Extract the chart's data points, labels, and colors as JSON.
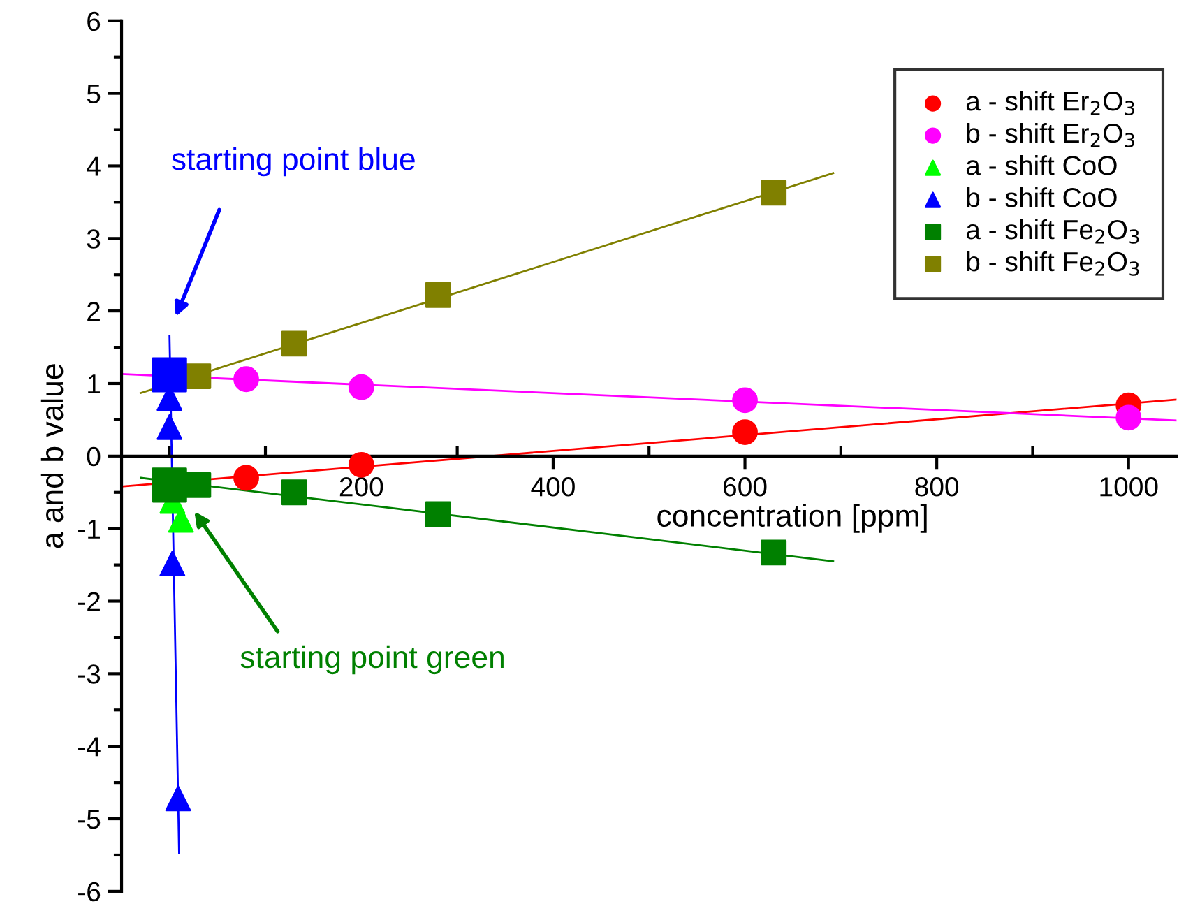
{
  "chart_data": {
    "type": "scatter",
    "xlabel": "concentration [ppm]",
    "ylabel": "a and b value",
    "xlim": [
      -50,
      1050
    ],
    "ylim": [
      -6,
      6
    ],
    "xticks": [
      {
        "value": 0,
        "label": null
      },
      {
        "value": 100,
        "label": null
      },
      200,
      {
        "value": 300,
        "label": null
      },
      400,
      {
        "value": 500,
        "label": null
      },
      600,
      {
        "value": 700,
        "label": null
      },
      800,
      {
        "value": 900,
        "label": null
      },
      1000
    ],
    "yticks": [
      -6,
      {
        "value": -5.5,
        "label": null
      },
      -5,
      {
        "value": -4.5,
        "label": null
      },
      -4,
      {
        "value": -3.5,
        "label": null
      },
      -3,
      {
        "value": -2.5,
        "label": null
      },
      -2,
      {
        "value": -1.5,
        "label": null
      },
      -1,
      {
        "value": -0.5,
        "label": null
      },
      0,
      {
        "value": 0.5,
        "label": null
      },
      1,
      {
        "value": 1.5,
        "label": null
      },
      2,
      {
        "value": 2.5,
        "label": null
      },
      3,
      {
        "value": 3.5,
        "label": null
      },
      4,
      {
        "value": 4.5,
        "label": null
      },
      5,
      {
        "value": 5.5,
        "label": null
      },
      6
    ],
    "grid": false,
    "legend": "top right",
    "series": [
      {
        "type": "line",
        "color": "#ff0000",
        "x": [
          -50,
          1050
        ],
        "values": [
          -0.42,
          0.78
        ]
      },
      {
        "type": "line",
        "color": "#ff00ff",
        "x": [
          -50,
          1050
        ],
        "values": [
          1.13,
          0.49
        ]
      },
      {
        "type": "line",
        "color": "#808000",
        "x": [
          -30,
          692
        ],
        "values": [
          0.87,
          3.9
        ]
      },
      {
        "type": "line",
        "color": "#008000",
        "x": [
          -30,
          692
        ],
        "values": [
          -0.3,
          -1.45
        ]
      },
      {
        "type": "line",
        "color": "#0000ff",
        "x": [
          0,
          10
        ],
        "values": [
          1.66,
          -5.47
        ]
      },
      {
        "name": "a - shift Er$_{2}$O$_{3}$",
        "marker": "circle",
        "color": "#ff0000",
        "x": [
          80,
          200,
          600,
          1000
        ],
        "values": [
          -0.3,
          -0.12,
          0.33,
          0.7
        ]
      },
      {
        "name": "b - shift Er$_{2}$O$_{3}$",
        "marker": "circle",
        "color": "#ff00ff",
        "x": [
          80,
          200,
          600,
          1000
        ],
        "values": [
          1.06,
          0.95,
          0.77,
          0.53
        ]
      },
      {
        "name": "a - shift CoO",
        "marker": "triangle",
        "color": "#00ff00",
        "x": [
          3,
          12
        ],
        "values": [
          -0.62,
          -0.88
        ]
      },
      {
        "name": "b - shift CoO",
        "marker": "triangle",
        "color": "#0000ff",
        "x": [
          0,
          0,
          3,
          9
        ],
        "values": [
          0.8,
          0.4,
          -1.48,
          -4.72
        ]
      },
      {
        "name": "a - shift Fe$_{2}$O$_{3}$",
        "marker": "square",
        "color": "#008000",
        "x": [
          30,
          130,
          280,
          630
        ],
        "values": [
          -0.4,
          -0.5,
          -0.8,
          -1.33
        ]
      },
      {
        "name": "b - shift Fe$_{2}$O$_{3}$",
        "marker": "square",
        "color": "#808000",
        "x": [
          30,
          130,
          280,
          630
        ],
        "values": [
          1.1,
          1.55,
          2.22,
          3.63
        ]
      },
      {
        "marker": "square",
        "color": "#0000ff",
        "x": [
          0
        ],
        "values": [
          1.12
        ]
      },
      {
        "marker": "square",
        "color": "#008000",
        "x": [
          0
        ],
        "values": [
          -0.4
        ]
      }
    ],
    "annotations": [
      "starting point blue",
      "starting point green"
    ]
  }
}
